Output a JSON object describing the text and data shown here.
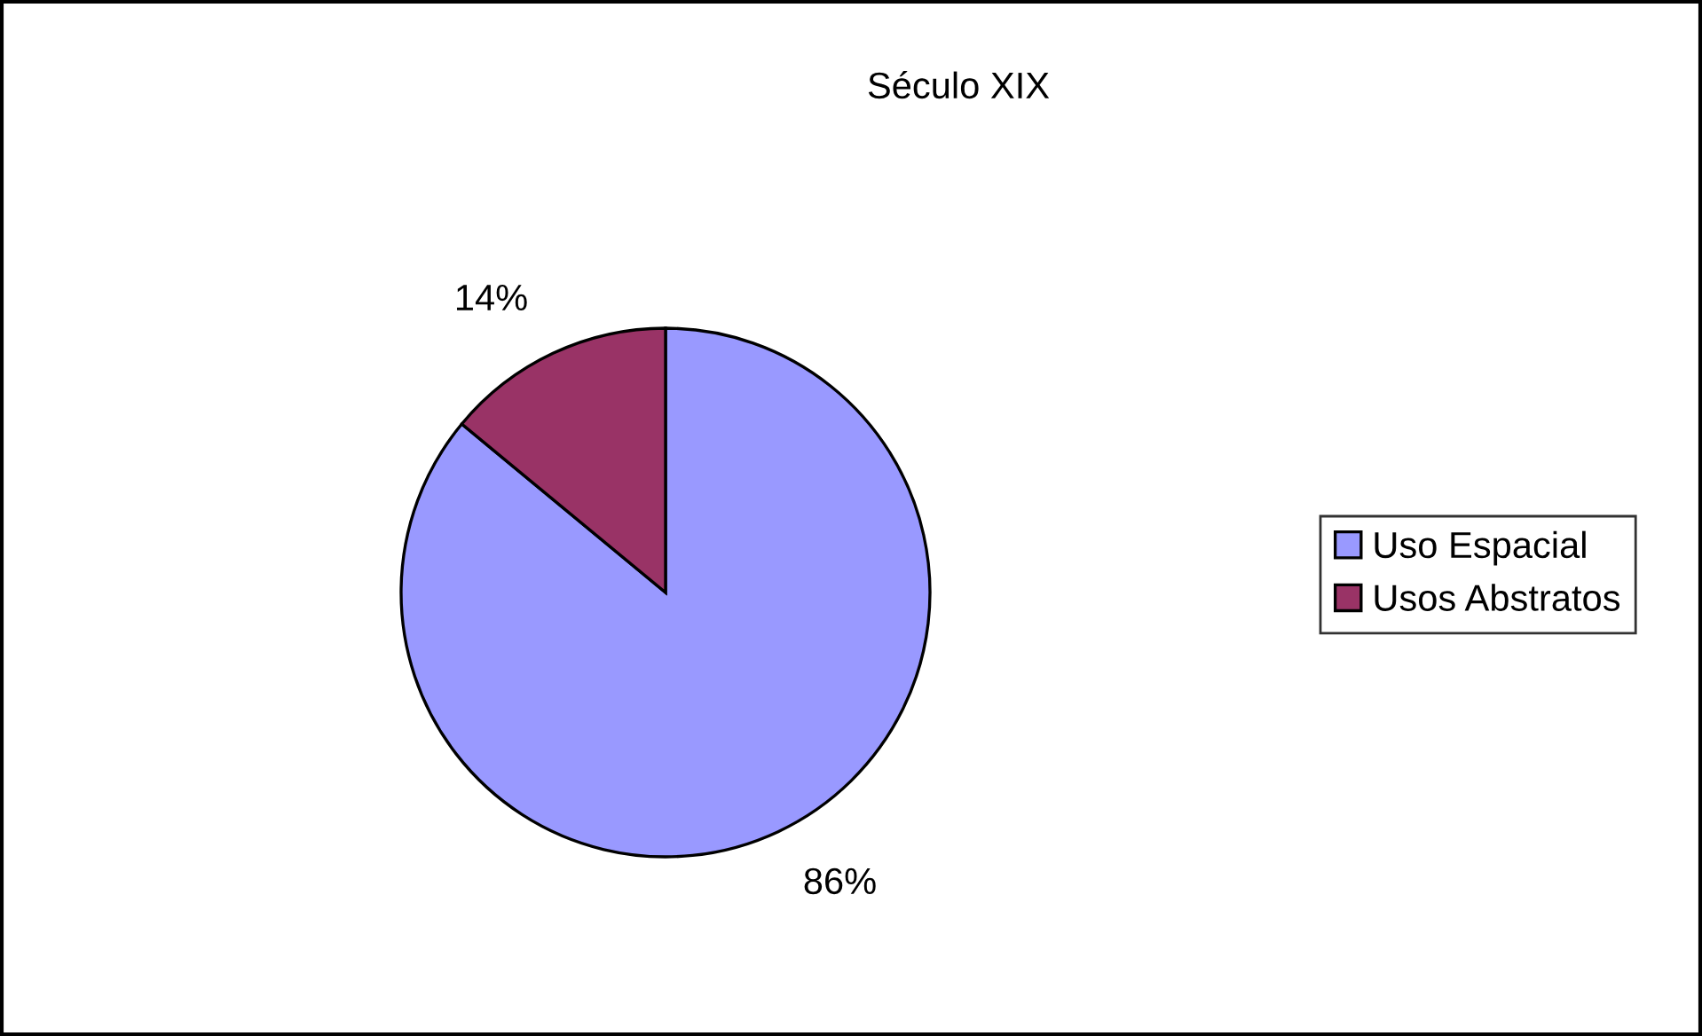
{
  "chart_data": {
    "type": "pie",
    "title": "Século XIX",
    "categories": [
      "Uso Espacial",
      "Usos Abstratos"
    ],
    "values": [
      86,
      14
    ],
    "colors": [
      "#9999ff",
      "#993366"
    ],
    "value_labels": [
      "86%",
      "14%"
    ],
    "legend": "right"
  }
}
